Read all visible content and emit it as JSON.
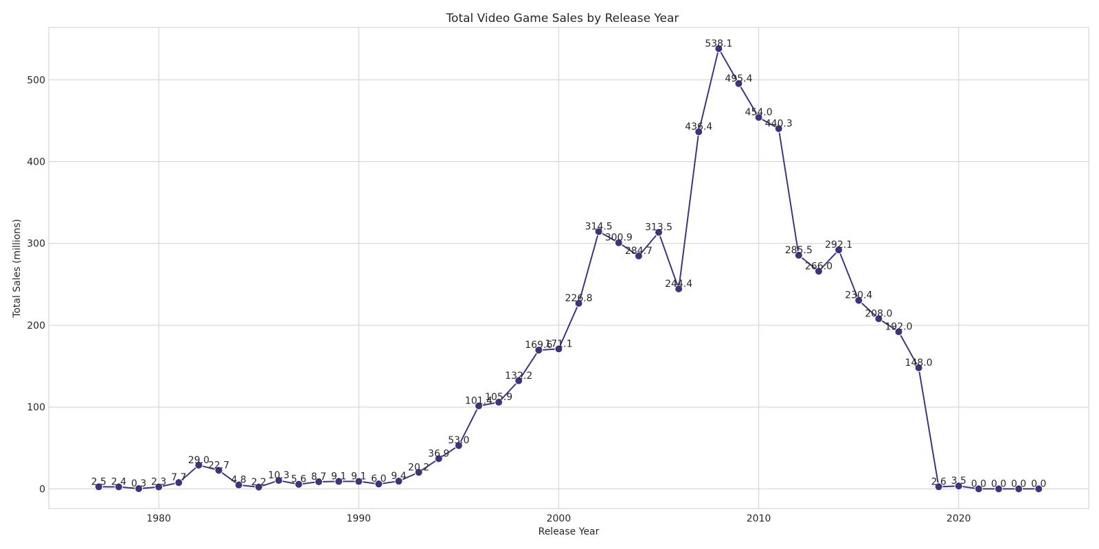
{
  "chart_data": {
    "type": "line",
    "title": "Total Video Game Sales by Release Year",
    "xlabel": "Release Year",
    "ylabel": "Total Sales (millions)",
    "xlim": [
      1974.5,
      2026.5
    ],
    "ylim": [
      -24,
      564
    ],
    "xticks": [
      1980,
      1990,
      2000,
      2010,
      2020
    ],
    "yticks": [
      0,
      100,
      200,
      300,
      400,
      500
    ],
    "grid": true,
    "color": "#3b3480",
    "x": [
      1977,
      1978,
      1979,
      1980,
      1981,
      1982,
      1983,
      1984,
      1985,
      1986,
      1987,
      1988,
      1989,
      1990,
      1991,
      1992,
      1993,
      1994,
      1995,
      1996,
      1997,
      1998,
      1999,
      2000,
      2001,
      2002,
      2003,
      2004,
      2005,
      2006,
      2007,
      2008,
      2009,
      2010,
      2011,
      2012,
      2013,
      2014,
      2015,
      2016,
      2017,
      2018,
      2019,
      2020,
      2021,
      2022,
      2023,
      2024
    ],
    "y": [
      2.5,
      2.4,
      0.3,
      2.3,
      7.7,
      29.0,
      22.7,
      4.8,
      2.2,
      10.3,
      5.6,
      8.7,
      9.1,
      9.1,
      6.0,
      9.4,
      20.2,
      36.9,
      53.0,
      101.4,
      105.9,
      132.2,
      169.6,
      171.1,
      226.8,
      314.5,
      300.9,
      284.7,
      313.5,
      244.4,
      436.4,
      538.1,
      495.4,
      454.0,
      440.3,
      285.5,
      266.0,
      292.1,
      230.4,
      208.0,
      192.0,
      148.0,
      2.6,
      3.5,
      0.0,
      0.0,
      0.0,
      0.0
    ],
    "labels": [
      "2.5",
      "2.4",
      "0.3",
      "2.3",
      "7.7",
      "29.0",
      "22.7",
      "4.8",
      "2.2",
      "10.3",
      "5.6",
      "8.7",
      "9.1",
      "9.1",
      "6.0",
      "9.4",
      "20.2",
      "36.9",
      "53.0",
      "101.4",
      "105.9",
      "132.2",
      "169.6",
      "171.1",
      "226.8",
      "314.5",
      "300.9",
      "284.7",
      "313.5",
      "244.4",
      "436.4",
      "538.1",
      "495.4",
      "454.0",
      "440.3",
      "285.5",
      "266.0",
      "292.1",
      "230.4",
      "208.0",
      "192.0",
      "148.0",
      "2.6",
      "3.5",
      "0.0",
      "0.0",
      "0.0",
      "0.0"
    ]
  }
}
